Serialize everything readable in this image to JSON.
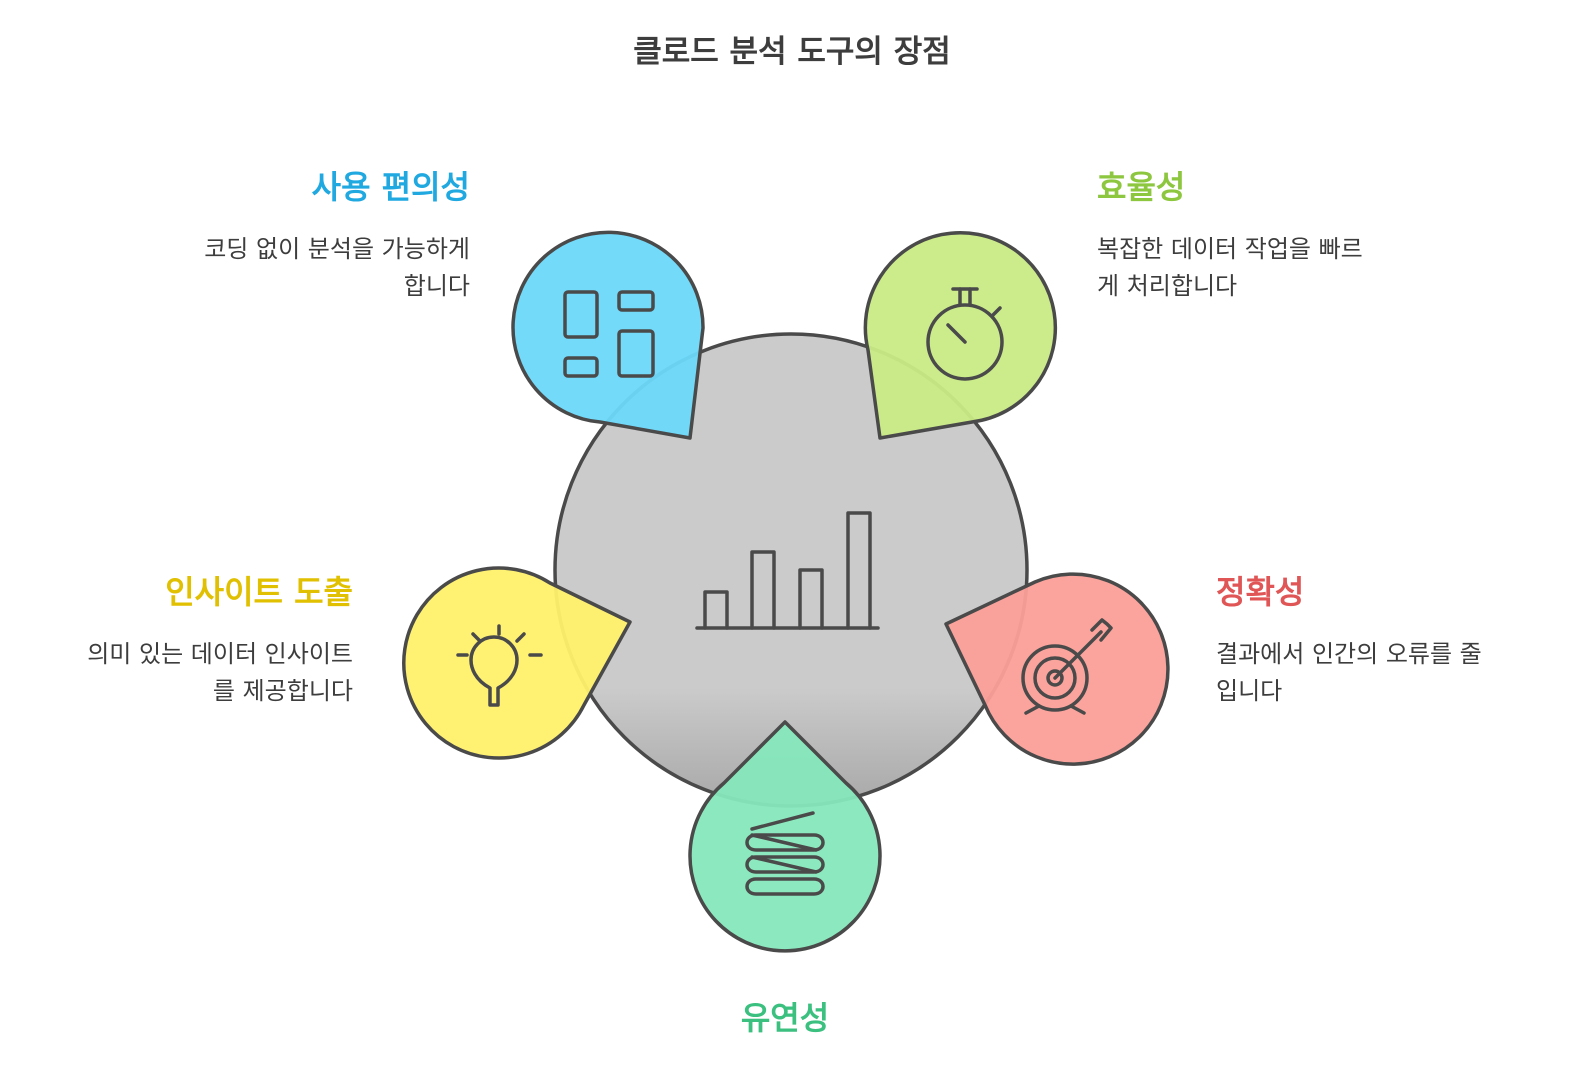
{
  "title": "클로드 분석 도구의 장점",
  "colors": {
    "stroke": "#4a4a4a",
    "hub_fill": "#cccccc",
    "ease": "#20a8e0",
    "ease_fill": "#6cd8fa",
    "efficiency": "#8dc63f",
    "efficiency_fill": "#c9ea85",
    "insight": "#e0c000",
    "insight_fill": "#fff06a",
    "accuracy": "#e05555",
    "accuracy_fill": "#fb9e98",
    "flexibility": "#3cc080",
    "flexibility_fill": "#86e8bc"
  },
  "hub": {
    "icon": "bar-chart-icon"
  },
  "features": {
    "ease": {
      "title": "사용 편의성",
      "desc_line1": "코딩 없이 분석을 가능하게",
      "desc_line2": "합니다",
      "icon": "layout-grid-icon"
    },
    "efficiency": {
      "title": "효율성",
      "desc_line1": "복잡한 데이터 작업을 빠르",
      "desc_line2": "게 처리합니다",
      "icon": "stopwatch-icon"
    },
    "insight": {
      "title": "인사이트 도출",
      "desc_line1": "의미 있는 데이터 인사이트",
      "desc_line2": "를 제공합니다",
      "icon": "lightbulb-icon"
    },
    "accuracy": {
      "title": "정확성",
      "desc_line1": "결과에서 인간의 오류를 줄",
      "desc_line2": "입니다",
      "icon": "target-icon"
    },
    "flexibility": {
      "title": "유연성",
      "icon": "spring-icon"
    }
  }
}
